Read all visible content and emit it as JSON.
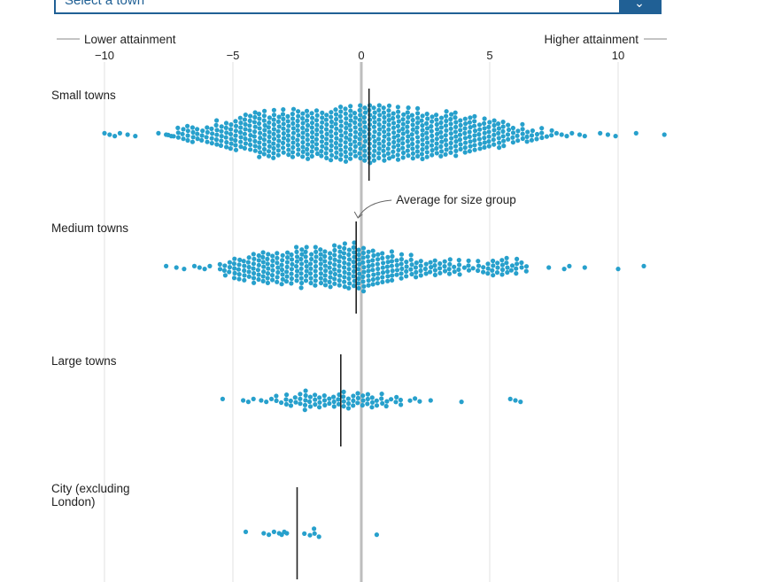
{
  "select": {
    "placeholder": "Select a town",
    "button_icon": "chevron-down-icon",
    "accent_color": "#206095"
  },
  "chart_data": {
    "type": "beeswarm",
    "direction_labels": {
      "left": "Lower attainment",
      "right": "Higher attainment"
    },
    "x_ticks": [
      {
        "value": -10,
        "label": "−10"
      },
      {
        "value": -5,
        "label": "−5"
      },
      {
        "value": 0,
        "label": "0"
      },
      {
        "value": 5,
        "label": "5"
      },
      {
        "value": 10,
        "label": "10"
      }
    ],
    "xlim": [
      -12.3,
      12.3
    ],
    "dot_color": "#27a0cc",
    "annotation": {
      "text": "Average for size group",
      "group_index": 1
    },
    "groups": [
      {
        "name": "Small towns",
        "label_lines": [
          "Small towns"
        ],
        "average": 0.3,
        "outliers": [
          -10,
          -9.8,
          -9.6,
          -9.4,
          -9.1,
          -8.8,
          -7.9,
          -7.6,
          -7.4,
          7.6,
          7.8,
          8.0,
          8.2,
          8.5,
          8.7,
          9.3,
          9.6,
          9.9,
          10.7,
          11.8
        ],
        "density": [
          [
            -7.5,
            10
          ],
          [
            -7.0,
            17
          ],
          [
            -6.5,
            22
          ],
          [
            -6.0,
            27
          ],
          [
            -5.5,
            34
          ],
          [
            -5.0,
            40
          ],
          [
            -4.5,
            45
          ],
          [
            -4.0,
            52
          ],
          [
            -3.5,
            55
          ],
          [
            -3.0,
            57
          ],
          [
            -2.5,
            58
          ],
          [
            -2.0,
            59
          ],
          [
            -1.5,
            60
          ],
          [
            -1.0,
            62
          ],
          [
            -0.5,
            64
          ],
          [
            0.0,
            66
          ],
          [
            0.5,
            66
          ],
          [
            1.0,
            66
          ],
          [
            1.5,
            62
          ],
          [
            2.0,
            60
          ],
          [
            2.5,
            58
          ],
          [
            3.0,
            55
          ],
          [
            3.5,
            51
          ],
          [
            4.0,
            47
          ],
          [
            4.5,
            40
          ],
          [
            5.0,
            33
          ],
          [
            5.5,
            29
          ],
          [
            6.0,
            25
          ],
          [
            6.5,
            22
          ],
          [
            7.0,
            15
          ],
          [
            7.5,
            8
          ]
        ]
      },
      {
        "name": "Medium towns",
        "label_lines": [
          "Medium towns"
        ],
        "average": -0.2,
        "outliers": [
          -7.6,
          -7.2,
          -6.9,
          -6.5,
          -6.3,
          -6.1,
          -5.9,
          7.3,
          7.9,
          8.1,
          8.7,
          10.0,
          11.0
        ],
        "density": [
          [
            -5.5,
            18
          ],
          [
            -5.0,
            24
          ],
          [
            -4.5,
            32
          ],
          [
            -4.0,
            38
          ],
          [
            -3.5,
            42
          ],
          [
            -3.0,
            44
          ],
          [
            -2.5,
            46
          ],
          [
            -2.0,
            46
          ],
          [
            -1.5,
            46
          ],
          [
            -1.0,
            50
          ],
          [
            -0.5,
            56
          ],
          [
            0.0,
            56
          ],
          [
            0.5,
            48
          ],
          [
            1.0,
            40
          ],
          [
            1.5,
            30
          ],
          [
            2.0,
            28
          ],
          [
            2.5,
            24
          ],
          [
            3.0,
            20
          ],
          [
            3.5,
            18
          ],
          [
            4.0,
            16
          ],
          [
            4.5,
            14
          ],
          [
            5.0,
            20
          ],
          [
            5.5,
            22
          ],
          [
            6.0,
            20
          ],
          [
            6.5,
            12
          ]
        ]
      },
      {
        "name": "Large towns",
        "label_lines": [
          "Large towns"
        ],
        "average": -0.8,
        "outliers": [
          -5.4,
          -4.6,
          -4.4,
          -4.2,
          -3.9,
          -3.7,
          -3.5,
          2.7,
          3.9,
          5.8,
          6.0,
          6.2
        ],
        "density": [
          [
            -3.3,
            10
          ],
          [
            -3.0,
            12
          ],
          [
            -2.5,
            18
          ],
          [
            -2.0,
            24
          ],
          [
            -1.5,
            22
          ],
          [
            -1.0,
            18
          ],
          [
            -0.5,
            20
          ],
          [
            0.0,
            22
          ],
          [
            0.5,
            16
          ],
          [
            1.0,
            14
          ],
          [
            1.5,
            12
          ],
          [
            2.0,
            10
          ],
          [
            2.4,
            8
          ]
        ]
      },
      {
        "name": "City (excluding London)",
        "label_lines": [
          "City (excluding",
          "London)"
        ],
        "average": -2.5,
        "outliers": [
          -4.5,
          -3.8,
          -3.6,
          -3.4,
          -3.2,
          -3.1,
          -3.0,
          -2.9,
          0.6
        ],
        "density": [
          [
            -2.2,
            10
          ],
          [
            -2.0,
            12
          ],
          [
            -1.8,
            10
          ],
          [
            -1.6,
            8
          ]
        ]
      }
    ]
  }
}
